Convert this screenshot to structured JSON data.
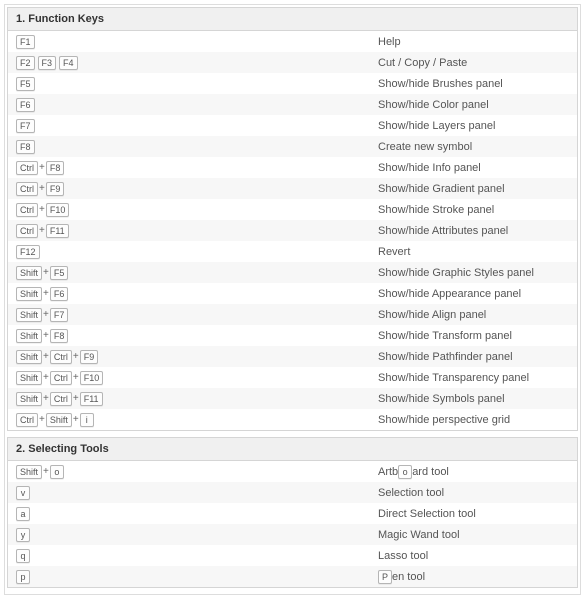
{
  "sections": [
    {
      "title": "1. Function Keys",
      "rows": [
        {
          "keys": [
            [
              "F1"
            ]
          ],
          "desc": "Help"
        },
        {
          "keys": [
            [
              "F2"
            ],
            [
              "F3"
            ],
            [
              "F4"
            ]
          ],
          "desc": "Cut / Copy / Paste"
        },
        {
          "keys": [
            [
              "F5"
            ]
          ],
          "desc": "Show/hide Brushes panel"
        },
        {
          "keys": [
            [
              "F6"
            ]
          ],
          "desc": "Show/hide Color panel"
        },
        {
          "keys": [
            [
              "F7"
            ]
          ],
          "desc": "Show/hide Layers panel"
        },
        {
          "keys": [
            [
              "F8"
            ]
          ],
          "desc": "Create new symbol"
        },
        {
          "keys": [
            [
              "Ctrl",
              "F8"
            ]
          ],
          "desc": "Show/hide Info panel"
        },
        {
          "keys": [
            [
              "Ctrl",
              "F9"
            ]
          ],
          "desc": "Show/hide Gradient panel"
        },
        {
          "keys": [
            [
              "Ctrl",
              "F10"
            ]
          ],
          "desc": "Show/hide Stroke panel"
        },
        {
          "keys": [
            [
              "Ctrl",
              "F11"
            ]
          ],
          "desc": "Show/hide Attributes panel"
        },
        {
          "keys": [
            [
              "F12"
            ]
          ],
          "desc": "Revert"
        },
        {
          "keys": [
            [
              "Shift",
              "F5"
            ]
          ],
          "desc": "Show/hide Graphic Styles panel"
        },
        {
          "keys": [
            [
              "Shift",
              "F6"
            ]
          ],
          "desc": "Show/hide Appearance panel"
        },
        {
          "keys": [
            [
              "Shift",
              "F7"
            ]
          ],
          "desc": "Show/hide Align panel"
        },
        {
          "keys": [
            [
              "Shift",
              "F8"
            ]
          ],
          "desc": "Show/hide Transform panel"
        },
        {
          "keys": [
            [
              "Shift",
              "Ctrl",
              "F9"
            ]
          ],
          "desc": "Show/hide Pathfinder panel"
        },
        {
          "keys": [
            [
              "Shift",
              "Ctrl",
              "F10"
            ]
          ],
          "desc": "Show/hide Transparency panel"
        },
        {
          "keys": [
            [
              "Shift",
              "Ctrl",
              "F11"
            ]
          ],
          "desc": "Show/hide Symbols panel"
        },
        {
          "keys": [
            [
              "Ctrl",
              "Shift",
              "i"
            ]
          ],
          "desc": "Show/hide perspective grid"
        }
      ]
    },
    {
      "title": "2. Selecting Tools",
      "rows": [
        {
          "keys": [
            [
              "Shift",
              "o"
            ]
          ],
          "desc_parts": [
            "Artb",
            "o",
            "ard tool"
          ]
        },
        {
          "keys": [
            [
              "v"
            ]
          ],
          "desc": "Selection tool"
        },
        {
          "keys": [
            [
              "a"
            ]
          ],
          "desc": "Direct Selection tool"
        },
        {
          "keys": [
            [
              "y"
            ]
          ],
          "desc": "Magic Wand tool"
        },
        {
          "keys": [
            [
              "q"
            ]
          ],
          "desc": "Lasso tool"
        },
        {
          "keys": [
            [
              "p"
            ]
          ],
          "desc_parts": [
            "",
            "P",
            "en tool"
          ]
        }
      ]
    }
  ],
  "style": {
    "row_bg_even": "#ffffff",
    "row_bg_odd": "#f7f7f7",
    "header_bg": "#f0f0f0",
    "border_color": "#d5d5d5",
    "key_border": "#b5b5b5",
    "text_color": "#555555",
    "font_size_row": 11,
    "font_size_key": 9
  }
}
